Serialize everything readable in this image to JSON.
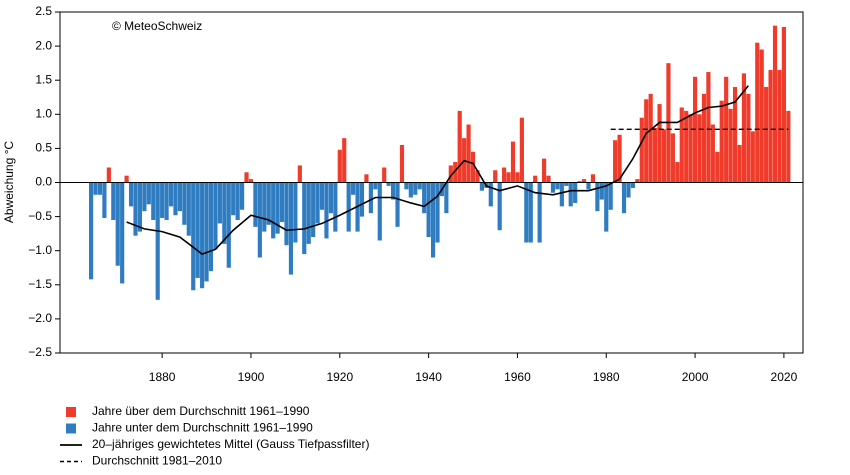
{
  "chart_data": {
    "type": "bar",
    "annotation": "© MeteoSchweiz",
    "ylabel": "Abweichung °C",
    "xlim": [
      1857,
      2024.3
    ],
    "ylim": [
      -2.5,
      2.5
    ],
    "xticks": [
      1880,
      1900,
      1920,
      1940,
      1960,
      1980,
      2000,
      2020
    ],
    "yticks": [
      {
        "value": 2.5,
        "label": "2.5"
      },
      {
        "value": 2,
        "label": "2.0"
      },
      {
        "value": 1.5,
        "label": "1.5"
      },
      {
        "value": 1,
        "label": "1.0"
      },
      {
        "value": 0.5,
        "label": "0.5"
      },
      {
        "value": 0,
        "label": "0.0"
      },
      {
        "value": -0.5,
        "label": "−0.5"
      },
      {
        "value": -1,
        "label": "−1.0"
      },
      {
        "value": -1.5,
        "label": "−1.5"
      },
      {
        "value": -2,
        "label": "−2.0"
      },
      {
        "value": -2.5,
        "label": "−2.5"
      }
    ],
    "x": [
      1864,
      1865,
      1866,
      1867,
      1868,
      1869,
      1870,
      1871,
      1872,
      1873,
      1874,
      1875,
      1876,
      1877,
      1878,
      1879,
      1880,
      1881,
      1882,
      1883,
      1884,
      1885,
      1886,
      1887,
      1888,
      1889,
      1890,
      1891,
      1892,
      1893,
      1894,
      1895,
      1896,
      1897,
      1898,
      1899,
      1900,
      1901,
      1902,
      1903,
      1904,
      1905,
      1906,
      1907,
      1908,
      1909,
      1910,
      1911,
      1912,
      1913,
      1914,
      1915,
      1916,
      1917,
      1918,
      1919,
      1920,
      1921,
      1922,
      1923,
      1924,
      1925,
      1926,
      1927,
      1928,
      1929,
      1930,
      1931,
      1932,
      1933,
      1934,
      1935,
      1936,
      1937,
      1938,
      1939,
      1940,
      1941,
      1942,
      1943,
      1944,
      1945,
      1946,
      1947,
      1948,
      1949,
      1950,
      1951,
      1952,
      1953,
      1954,
      1955,
      1956,
      1957,
      1958,
      1959,
      1960,
      1961,
      1962,
      1963,
      1964,
      1965,
      1966,
      1967,
      1968,
      1969,
      1970,
      1971,
      1972,
      1973,
      1974,
      1975,
      1976,
      1977,
      1978,
      1979,
      1980,
      1981,
      1982,
      1983,
      1984,
      1985,
      1986,
      1987,
      1988,
      1989,
      1990,
      1991,
      1992,
      1993,
      1994,
      1995,
      1996,
      1997,
      1998,
      1999,
      2000,
      2001,
      2002,
      2003,
      2004,
      2005,
      2006,
      2007,
      2008,
      2009,
      2010,
      2011,
      2012,
      2013,
      2014,
      2015,
      2016,
      2017,
      2018,
      2019,
      2020,
      2021
    ],
    "values": [
      -1.42,
      -0.18,
      -0.18,
      -0.52,
      0.22,
      -0.55,
      -1.22,
      -1.48,
      0.1,
      -0.35,
      -0.78,
      -0.72,
      -0.42,
      -0.32,
      -0.55,
      -1.72,
      -0.52,
      -0.55,
      -0.35,
      -0.48,
      -0.42,
      -0.62,
      -0.78,
      -1.58,
      -1.4,
      -1.55,
      -1.45,
      -1.3,
      -0.98,
      -0.6,
      -0.9,
      -1.25,
      -0.48,
      -0.55,
      -0.4,
      0.15,
      0.05,
      -0.65,
      -1.1,
      -0.72,
      -0.62,
      -0.82,
      -0.75,
      -0.58,
      -0.92,
      -1.35,
      -0.88,
      0.25,
      -1.05,
      -0.9,
      -0.8,
      -0.6,
      -0.4,
      -0.82,
      -0.45,
      -0.72,
      0.48,
      0.65,
      -0.72,
      -0.18,
      -0.72,
      -0.5,
      0.12,
      -0.45,
      -0.1,
      -0.85,
      0.22,
      -0.05,
      -0.25,
      -0.65,
      0.55,
      -0.1,
      -0.22,
      -0.18,
      -0.1,
      -0.45,
      -0.8,
      -1.1,
      -0.88,
      -0.2,
      -0.45,
      0.25,
      0.3,
      1.05,
      0.65,
      0.85,
      0.45,
      0.18,
      -0.12,
      -0.08,
      -0.35,
      0.18,
      -0.7,
      0.22,
      0.15,
      0.6,
      0.15,
      0.95,
      -0.88,
      -0.88,
      0.1,
      -0.88,
      0.35,
      0.1,
      -0.15,
      -0.1,
      -0.35,
      -0.05,
      -0.35,
      -0.3,
      0.02,
      0.05,
      -0.1,
      0.12,
      -0.42,
      -0.25,
      -0.72,
      -0.4,
      0.62,
      0.7,
      -0.45,
      -0.22,
      -0.08,
      0.05,
      0.95,
      1.22,
      1.3,
      0.8,
      1.15,
      0.78,
      1.75,
      0.72,
      0.3,
      1.1,
      1.05,
      1.0,
      1.55,
      1.0,
      1.3,
      1.62,
      0.85,
      0.45,
      1.2,
      1.55,
      1.08,
      1.4,
      0.55,
      1.6,
      1.3,
      0.75,
      2.05,
      1.95,
      1.4,
      1.65,
      2.3,
      1.65,
      2.28,
      1.05
    ],
    "smooth": {
      "x": [
        1872,
        1876,
        1880,
        1884,
        1887,
        1889,
        1892,
        1896,
        1900,
        1904,
        1908,
        1912,
        1916,
        1920,
        1924,
        1928,
        1932,
        1936,
        1939,
        1942,
        1945,
        1948,
        1950,
        1953,
        1956,
        1960,
        1964,
        1968,
        1972,
        1976,
        1980,
        1983,
        1986,
        1989,
        1992,
        1996,
        2000,
        2003,
        2006,
        2009,
        2012
      ],
      "values": [
        -0.58,
        -0.68,
        -0.72,
        -0.8,
        -0.95,
        -1.05,
        -0.98,
        -0.7,
        -0.48,
        -0.55,
        -0.7,
        -0.68,
        -0.6,
        -0.48,
        -0.35,
        -0.22,
        -0.22,
        -0.3,
        -0.35,
        -0.2,
        0.1,
        0.32,
        0.28,
        -0.05,
        -0.12,
        -0.05,
        -0.15,
        -0.18,
        -0.12,
        -0.12,
        -0.05,
        0.05,
        0.35,
        0.72,
        0.88,
        0.88,
        1.02,
        1.1,
        1.12,
        1.18,
        1.42
      ],
      "color": "#000000"
    },
    "mean": {
      "x": [
        1981,
        2021
      ],
      "value": 0.78,
      "color": "#000000"
    },
    "legend": [
      {
        "label": "Jahre über dem Durchschnitt 1961–1990",
        "color": "#f03b2b"
      },
      {
        "label": "Jahre unter dem Durchschnitt 1961–1990",
        "color": "#2f7cc0"
      },
      {
        "label": "20–jähriges gewichtetes Mittel (Gauss Tiefpassfilter)",
        "color": "#000000"
      },
      {
        "label": "Durchschnitt 1981–2010",
        "color": "#000000"
      }
    ]
  }
}
